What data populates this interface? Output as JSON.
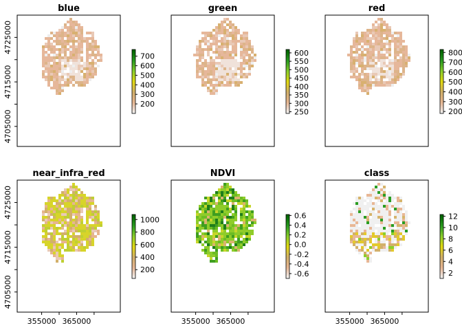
{
  "chart_data": [
    {
      "type": "heatmap",
      "title": "blue",
      "x_ticks": [],
      "y_ticks": [
        "4725000",
        "4715000",
        "4705000"
      ],
      "xlim": [
        348000,
        377500
      ],
      "ylim": [
        4700500,
        4730000
      ],
      "legend_placement": "right",
      "legend": {
        "range": [
          100,
          770
        ],
        "ticks": [
          700,
          600,
          500,
          400,
          300,
          200
        ],
        "palette": [
          "#f2f2f2",
          "#e7b693",
          "#d2b06a",
          "#e3da10",
          "#8bcf2b",
          "#2a9d21",
          "#006400"
        ]
      },
      "raster_style": "bands"
    },
    {
      "type": "heatmap",
      "title": "green",
      "x_ticks": [],
      "y_ticks": [],
      "xlim": [
        348000,
        377500
      ],
      "ylim": [
        4700500,
        4730000
      ],
      "legend_placement": "right",
      "legend": {
        "range": [
          240,
          620
        ],
        "ticks": [
          600,
          550,
          500,
          450,
          400,
          350,
          300,
          250
        ],
        "palette": [
          "#f2f2f2",
          "#e7b693",
          "#d2b06a",
          "#e3da10",
          "#8bcf2b",
          "#2a9d21",
          "#006400"
        ]
      },
      "raster_style": "bands"
    },
    {
      "type": "heatmap",
      "title": "red",
      "x_ticks": [],
      "y_ticks": [],
      "xlim": [
        348000,
        377500
      ],
      "ylim": [
        4700500,
        4730000
      ],
      "legend_placement": "right",
      "legend": {
        "range": [
          180,
          830
        ],
        "ticks": [
          800,
          700,
          600,
          500,
          400,
          300,
          200
        ],
        "palette": [
          "#f2f2f2",
          "#e7b693",
          "#d2b06a",
          "#e3da10",
          "#8bcf2b",
          "#2a9d21",
          "#006400"
        ]
      },
      "raster_style": "bands"
    },
    {
      "type": "heatmap",
      "title": "near_infra_red",
      "x_ticks": [
        "355000",
        "365000"
      ],
      "y_ticks": [
        "4725000",
        "4715000",
        "4705000"
      ],
      "xlim": [
        348000,
        377500
      ],
      "ylim": [
        4700500,
        4730000
      ],
      "legend_placement": "right",
      "legend": {
        "range": [
          60,
          1080
        ],
        "ticks": [
          1000,
          800,
          600,
          400,
          200
        ],
        "palette": [
          "#f2f2f2",
          "#e7b693",
          "#d2b06a",
          "#e3da10",
          "#8bcf2b",
          "#2a9d21",
          "#006400"
        ]
      },
      "raster_style": "nir"
    },
    {
      "type": "heatmap",
      "title": "NDVI",
      "x_ticks": [
        "355000",
        "365000"
      ],
      "y_ticks": [],
      "xlim": [
        348000,
        377500
      ],
      "ylim": [
        4700500,
        4730000
      ],
      "legend_placement": "right",
      "legend": {
        "range": [
          -0.7,
          0.62
        ],
        "ticks": [
          "0.6",
          "0.4",
          "0.2",
          "0.0",
          "-0.2",
          "-0.4",
          "-0.6"
        ],
        "palette": [
          "#f2f2f2",
          "#e7b693",
          "#d2b06a",
          "#e3da10",
          "#8bcf2b",
          "#2a9d21",
          "#006400"
        ]
      },
      "raster_style": "ndvi"
    },
    {
      "type": "heatmap",
      "title": "class",
      "x_ticks": [
        "355000",
        "365000"
      ],
      "y_ticks": [],
      "xlim": [
        348000,
        377500
      ],
      "ylim": [
        4700500,
        4730000
      ],
      "legend_placement": "right",
      "legend": {
        "range": [
          1,
          12.3
        ],
        "ticks": [
          12,
          10,
          8,
          6,
          4,
          2
        ],
        "palette": [
          "#f2f2f2",
          "#e7b693",
          "#d2b06a",
          "#e3da10",
          "#8bcf2b",
          "#2a9d21",
          "#006400"
        ]
      },
      "raster_style": "class"
    }
  ]
}
